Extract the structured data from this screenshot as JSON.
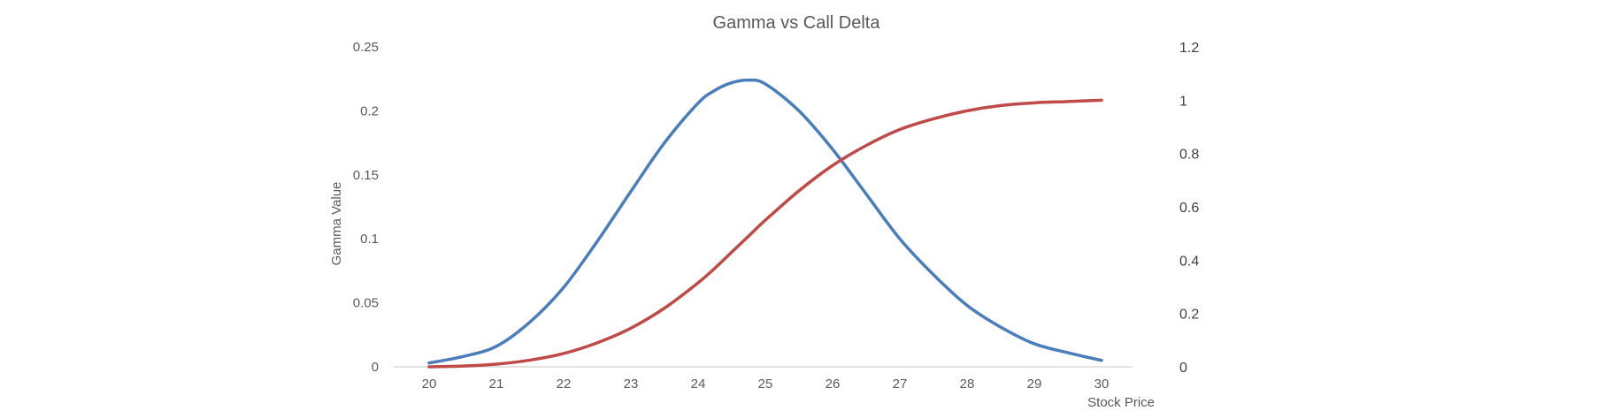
{
  "chart_data": {
    "type": "line",
    "title": "Gamma vs Call Delta",
    "xlabel": "Stock Price",
    "ylabel": "Gamma Value",
    "y2label": "",
    "x": [
      20,
      20.5,
      21,
      21.5,
      22,
      22.5,
      23,
      23.5,
      24,
      24.25,
      24.5,
      24.75,
      25,
      25.5,
      26,
      26.5,
      27,
      27.5,
      28,
      28.5,
      29,
      29.5,
      30
    ],
    "xticks": [
      "20",
      "21",
      "22",
      "23",
      "24",
      "25",
      "26",
      "27",
      "28",
      "29",
      "30"
    ],
    "xlim": [
      20,
      30
    ],
    "ylim": [
      0,
      0.25
    ],
    "yticks": [
      "0",
      "0.05",
      "0.1",
      "0.15",
      "0.2",
      "0.25"
    ],
    "y2lim": [
      0,
      1.2
    ],
    "y2ticks": [
      "0",
      "0.2",
      "0.4",
      "0.6",
      "0.8",
      "1",
      "1.2"
    ],
    "series": [
      {
        "name": "",
        "axis": "left",
        "color": "#4A7EBB",
        "values": [
          0.003,
          0.008,
          0.016,
          0.035,
          0.062,
          0.098,
          0.137,
          0.175,
          0.206,
          0.216,
          0.222,
          0.224,
          0.221,
          0.2,
          0.17,
          0.135,
          0.1,
          0.072,
          0.048,
          0.031,
          0.018,
          0.011,
          0.005
        ]
      },
      {
        "name": "",
        "axis": "right",
        "color": "#BE4B48",
        "values": [
          0.0,
          0.003,
          0.01,
          0.025,
          0.05,
          0.09,
          0.145,
          0.22,
          0.315,
          0.37,
          0.43,
          0.49,
          0.55,
          0.66,
          0.755,
          0.83,
          0.89,
          0.93,
          0.96,
          0.98,
          0.99,
          0.995,
          1.0
        ]
      }
    ],
    "grid": false,
    "legend": "none"
  }
}
